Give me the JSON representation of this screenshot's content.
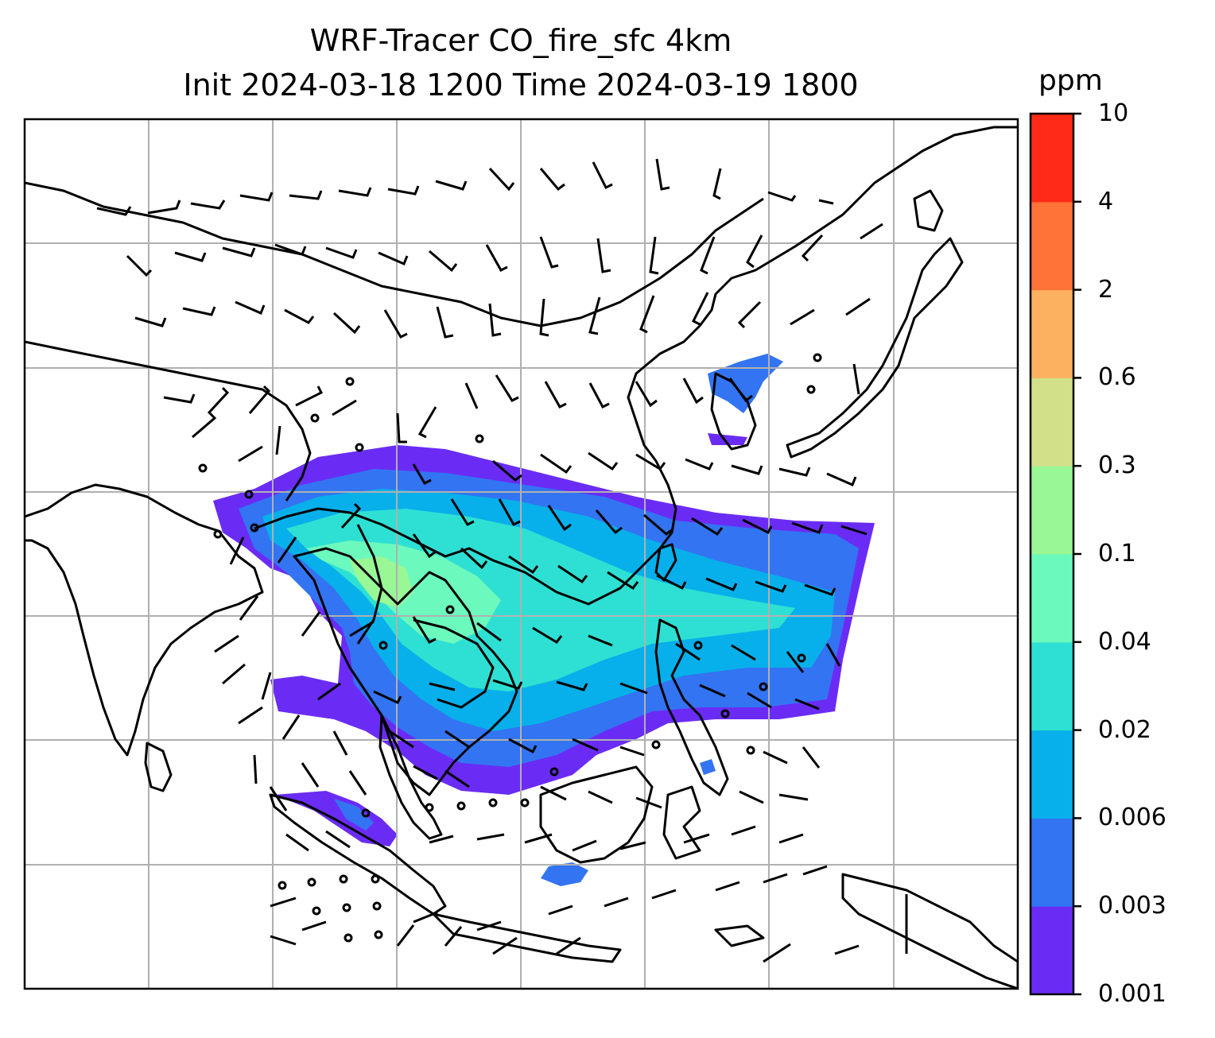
{
  "title": {
    "line1": "WRF-Tracer CO_fire_sfc 4km",
    "line2": "Init 2024-03-18 1200 Time 2024-03-19 1800"
  },
  "colorbar": {
    "unit": "ppm",
    "levels": [
      "0.001",
      "0.003",
      "0.006",
      "0.02",
      "0.04",
      "0.1",
      "0.3",
      "0.6",
      "2",
      "4",
      "10"
    ],
    "colors": [
      "#6a2cf5",
      "#3374f2",
      "#07b0ea",
      "#2ee0d3",
      "#6cf9bd",
      "#99f795",
      "#d2e08a",
      "#fcb160",
      "#ff7238",
      "#ff2a17"
    ]
  },
  "map": {
    "gridlines": "on",
    "grid_color": "#b0b0b0",
    "coastline_color": "#000000",
    "wind_barb_color": "#000000",
    "field": "CO_fire_sfc",
    "plume_colors": {
      "faint": "#6a2cf5",
      "low": "#3374f2",
      "mid": "#07b0ea",
      "high": "#2ee0d3",
      "peak": "#6cf9bd",
      "max": "#99f795"
    }
  }
}
